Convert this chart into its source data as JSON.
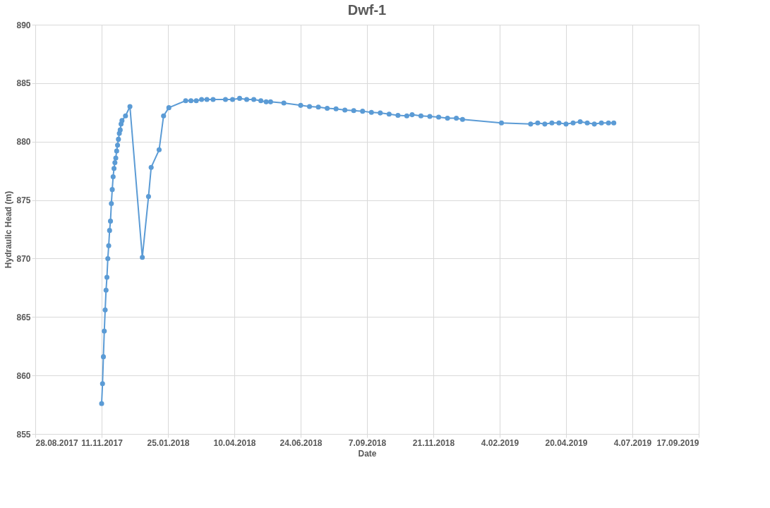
{
  "chart_data": {
    "type": "line",
    "title": "Dwf-1",
    "xlabel": "Date",
    "ylabel": "Hydraulic Head (m)",
    "xlim": [
      "2017-08-28",
      "2019-09-17"
    ],
    "xticks": [
      {
        "value": "2017-08-28",
        "label": "28.08.2017"
      },
      {
        "value": "2017-11-11",
        "label": "11.11.2017"
      },
      {
        "value": "2018-01-25",
        "label": "25.01.2018"
      },
      {
        "value": "2018-04-10",
        "label": "10.04.2018"
      },
      {
        "value": "2018-06-24",
        "label": "24.06.2018"
      },
      {
        "value": "2018-09-07",
        "label": "7.09.2018"
      },
      {
        "value": "2018-11-21",
        "label": "21.11.2018"
      },
      {
        "value": "2019-02-04",
        "label": "4.02.2019"
      },
      {
        "value": "2019-04-20",
        "label": "20.04.2019"
      },
      {
        "value": "2019-07-04",
        "label": "4.07.2019"
      },
      {
        "value": "2019-09-17",
        "label": "17.09.2019"
      }
    ],
    "ylim": [
      855,
      890
    ],
    "yticks": [
      855,
      860,
      865,
      870,
      875,
      880,
      885,
      890
    ],
    "grid": true,
    "marker": "circle",
    "line_style": "solid",
    "series": [
      {
        "color": "#5b9bd5",
        "x": [
          "2017-11-11",
          "2017-11-12",
          "2017-11-13",
          "2017-11-14",
          "2017-11-15",
          "2017-11-16",
          "2017-11-17",
          "2017-11-18",
          "2017-11-19",
          "2017-11-20",
          "2017-11-21",
          "2017-11-22",
          "2017-11-23",
          "2017-11-24",
          "2017-11-25",
          "2017-11-26",
          "2017-11-27",
          "2017-11-28",
          "2017-11-29",
          "2017-11-30",
          "2017-12-01",
          "2017-12-02",
          "2017-12-03",
          "2017-12-04",
          "2017-12-08",
          "2017-12-13",
          "2017-12-27",
          "2018-01-03",
          "2018-01-06",
          "2018-01-15",
          "2018-01-20",
          "2018-01-26",
          "2018-02-14",
          "2018-02-20",
          "2018-02-26",
          "2018-03-04",
          "2018-03-10",
          "2018-03-17",
          "2018-03-31",
          "2018-04-08",
          "2018-04-16",
          "2018-04-24",
          "2018-05-02",
          "2018-05-10",
          "2018-05-16",
          "2018-05-21",
          "2018-06-05",
          "2018-06-24",
          "2018-07-04",
          "2018-07-14",
          "2018-07-24",
          "2018-08-03",
          "2018-08-13",
          "2018-08-23",
          "2018-09-02",
          "2018-09-12",
          "2018-09-22",
          "2018-10-02",
          "2018-10-12",
          "2018-10-22",
          "2018-10-28",
          "2018-11-07",
          "2018-11-17",
          "2018-11-27",
          "2018-12-07",
          "2018-12-17",
          "2018-12-24",
          "2019-02-06",
          "2019-03-11",
          "2019-03-19",
          "2019-03-27",
          "2019-04-04",
          "2019-04-12",
          "2019-04-20",
          "2019-04-28",
          "2019-05-06",
          "2019-05-14",
          "2019-05-22",
          "2019-05-30",
          "2019-06-07",
          "2019-06-13"
        ],
        "values": [
          857.6,
          859.3,
          861.6,
          863.8,
          865.6,
          867.3,
          868.4,
          870.0,
          871.1,
          872.4,
          873.2,
          874.7,
          875.9,
          877.0,
          877.7,
          878.2,
          878.6,
          879.2,
          879.7,
          880.2,
          880.7,
          881.0,
          881.5,
          881.8,
          882.2,
          883.0,
          870.1,
          875.3,
          877.8,
          879.3,
          882.2,
          882.9,
          883.5,
          883.5,
          883.5,
          883.6,
          883.6,
          883.6,
          883.6,
          883.6,
          883.7,
          883.6,
          883.6,
          883.5,
          883.4,
          883.4,
          883.3,
          883.1,
          883.0,
          882.95,
          882.85,
          882.8,
          882.7,
          882.65,
          882.6,
          882.5,
          882.45,
          882.35,
          882.25,
          882.2,
          882.3,
          882.2,
          882.15,
          882.1,
          882.0,
          882.0,
          881.9,
          881.6,
          881.5,
          881.6,
          881.5,
          881.6,
          881.6,
          881.5,
          881.6,
          881.7,
          881.6,
          881.5,
          881.6,
          881.6,
          881.6
        ]
      }
    ]
  }
}
